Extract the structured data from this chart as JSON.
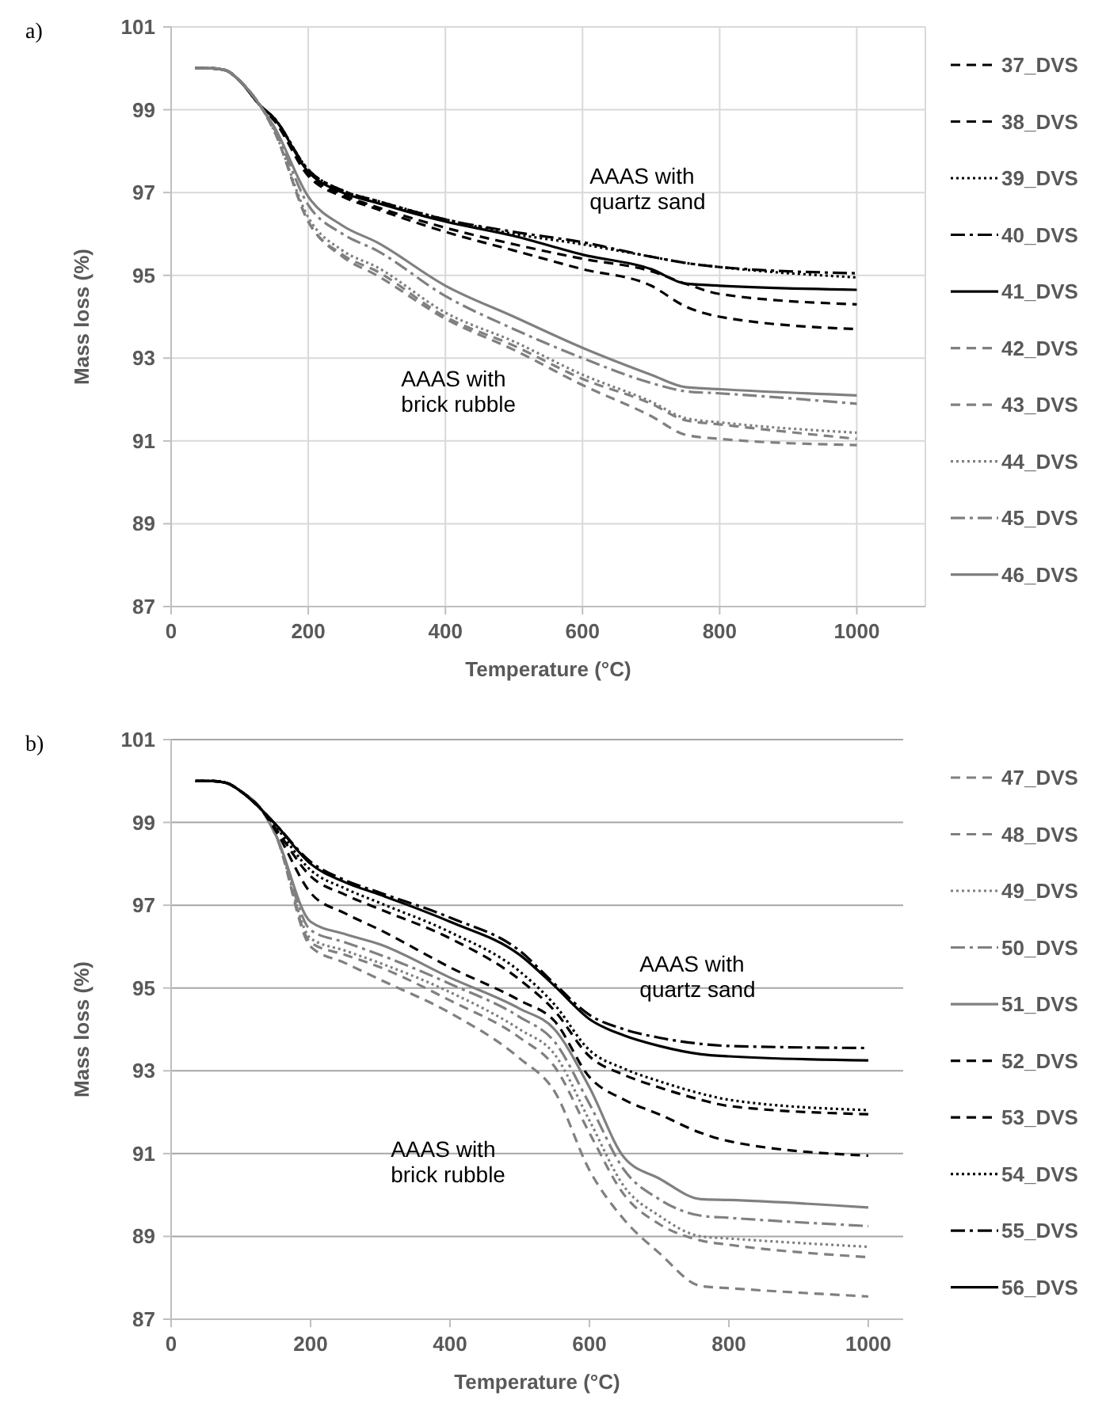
{
  "chart_data": [
    {
      "type": "line",
      "title": "a)",
      "xlabel": "Temperature (°C)",
      "ylabel": "Mass loss (%)",
      "xlim": [
        0,
        1100
      ],
      "xticks": [
        0,
        200,
        400,
        600,
        800,
        1000
      ],
      "ylim": [
        87,
        101
      ],
      "yticks": [
        87,
        89,
        91,
        93,
        95,
        97,
        99,
        101
      ],
      "grid": true,
      "legend": "right",
      "x": [
        35,
        60,
        80,
        100,
        130,
        150,
        200,
        250,
        300,
        400,
        500,
        600,
        700,
        750,
        800,
        1000
      ],
      "annotations": [
        "AAAS with\nquartz sand",
        "AAAS with\nbrick rubble"
      ],
      "series": [
        {
          "name": "37_DVS",
          "color": "#000000",
          "line_style": "dashed",
          "values": [
            100,
            100,
            99.95,
            99.7,
            99.1,
            98.75,
            97.4,
            96.9,
            96.6,
            96.05,
            95.6,
            95.15,
            94.75,
            94.25,
            94.0,
            93.7
          ]
        },
        {
          "name": "38_DVS",
          "color": "#000000",
          "line_style": "dashed",
          "values": [
            100,
            100,
            99.95,
            99.7,
            99.1,
            98.75,
            97.45,
            96.95,
            96.65,
            96.15,
            95.75,
            95.4,
            95.1,
            94.8,
            94.55,
            94.3
          ]
        },
        {
          "name": "39_DVS",
          "color": "#000000",
          "line_style": "dotted",
          "values": [
            100,
            100,
            99.95,
            99.7,
            99.1,
            98.8,
            97.55,
            97.05,
            96.8,
            96.35,
            96.0,
            95.75,
            95.45,
            95.3,
            95.2,
            94.95
          ]
        },
        {
          "name": "40_DVS",
          "color": "#000000",
          "line_style": "dashdot",
          "values": [
            100,
            100,
            99.95,
            99.7,
            99.1,
            98.8,
            97.55,
            97.05,
            96.8,
            96.35,
            96.05,
            95.8,
            95.45,
            95.3,
            95.2,
            95.05
          ]
        },
        {
          "name": "41_DVS",
          "color": "#000000",
          "line_style": "solid",
          "values": [
            100,
            100,
            99.95,
            99.7,
            99.1,
            98.8,
            97.5,
            97.0,
            96.75,
            96.3,
            95.95,
            95.5,
            95.15,
            94.8,
            94.75,
            94.65
          ]
        },
        {
          "name": "42_DVS",
          "color": "#808080",
          "line_style": "dashed",
          "values": [
            100,
            100,
            99.95,
            99.7,
            99.1,
            98.5,
            96.3,
            95.45,
            95.0,
            93.95,
            93.2,
            92.35,
            91.6,
            91.15,
            91.05,
            90.9
          ]
        },
        {
          "name": "43_DVS",
          "color": "#808080",
          "line_style": "dashed",
          "values": [
            100,
            100,
            99.95,
            99.7,
            99.1,
            98.5,
            96.3,
            95.5,
            95.1,
            94.0,
            93.3,
            92.5,
            91.9,
            91.5,
            91.4,
            91.05
          ]
        },
        {
          "name": "44_DVS",
          "color": "#808080",
          "line_style": "dotted",
          "values": [
            100,
            100,
            99.95,
            99.7,
            99.1,
            98.5,
            96.4,
            95.6,
            95.2,
            94.1,
            93.4,
            92.6,
            91.95,
            91.55,
            91.45,
            91.2
          ]
        },
        {
          "name": "45_DVS",
          "color": "#808080",
          "line_style": "dashdot",
          "values": [
            100,
            100,
            99.95,
            99.7,
            99.1,
            98.55,
            96.7,
            96.0,
            95.6,
            94.5,
            93.7,
            93.0,
            92.4,
            92.2,
            92.15,
            91.9
          ]
        },
        {
          "name": "46_DVS",
          "color": "#808080",
          "line_style": "solid",
          "values": [
            100,
            100,
            99.95,
            99.7,
            99.1,
            98.6,
            96.9,
            96.2,
            95.8,
            94.75,
            94.0,
            93.25,
            92.6,
            92.3,
            92.25,
            92.1
          ]
        }
      ]
    },
    {
      "type": "line",
      "title": "b)",
      "xlabel": "Temperature (°C)",
      "ylabel": "Mass loss (%)",
      "xlim": [
        0,
        1050
      ],
      "xticks": [
        0,
        200,
        400,
        600,
        800,
        1000
      ],
      "ylim": [
        87,
        101
      ],
      "yticks": [
        87,
        89,
        91,
        93,
        95,
        97,
        99,
        101
      ],
      "grid": "y",
      "legend": "right",
      "x": [
        35,
        60,
        80,
        100,
        130,
        150,
        200,
        250,
        300,
        400,
        500,
        550,
        600,
        650,
        700,
        760,
        800,
        1000
      ],
      "annotations": [
        "AAAS with\nquartz sand",
        "AAAS with\nbrick rubble"
      ],
      "series": [
        {
          "name": "47_DVS",
          "color": "#808080",
          "line_style": "dashed",
          "values": [
            100,
            100,
            99.95,
            99.75,
            99.3,
            98.7,
            96.0,
            95.6,
            95.2,
            94.4,
            93.3,
            92.5,
            90.6,
            89.4,
            88.6,
            87.8,
            87.75,
            87.55
          ]
        },
        {
          "name": "48_DVS",
          "color": "#808080",
          "line_style": "dashed",
          "values": [
            100,
            100,
            99.95,
            99.75,
            99.3,
            98.7,
            96.1,
            95.8,
            95.5,
            94.7,
            93.8,
            93.1,
            91.5,
            90.0,
            89.3,
            88.9,
            88.8,
            88.5
          ]
        },
        {
          "name": "49_DVS",
          "color": "#808080",
          "line_style": "dotted",
          "values": [
            100,
            100,
            99.95,
            99.75,
            99.3,
            98.7,
            96.2,
            95.9,
            95.6,
            94.9,
            94.0,
            93.4,
            91.8,
            90.2,
            89.5,
            89.0,
            88.95,
            88.75
          ]
        },
        {
          "name": "50_DVS",
          "color": "#808080",
          "line_style": "dashdot",
          "values": [
            100,
            100,
            99.95,
            99.75,
            99.3,
            98.7,
            96.4,
            96.1,
            95.8,
            95.1,
            94.3,
            93.7,
            92.2,
            90.6,
            89.9,
            89.5,
            89.45,
            89.25
          ]
        },
        {
          "name": "51_DVS",
          "color": "#808080",
          "line_style": "solid",
          "values": [
            100,
            100,
            99.95,
            99.75,
            99.3,
            98.7,
            96.6,
            96.3,
            96.05,
            95.25,
            94.5,
            94.0,
            92.6,
            90.9,
            90.4,
            89.9,
            89.88,
            89.7
          ]
        },
        {
          "name": "52_DVS",
          "color": "#000000",
          "line_style": "dashed",
          "values": [
            100,
            100,
            99.95,
            99.75,
            99.3,
            98.8,
            97.3,
            96.8,
            96.4,
            95.5,
            94.7,
            94.2,
            92.85,
            92.3,
            91.95,
            91.5,
            91.3,
            90.95
          ]
        },
        {
          "name": "53_DVS",
          "color": "#000000",
          "line_style": "dashed",
          "values": [
            100,
            100,
            99.95,
            99.75,
            99.3,
            98.85,
            97.7,
            97.25,
            96.9,
            96.2,
            95.2,
            94.45,
            93.35,
            92.9,
            92.6,
            92.3,
            92.15,
            91.95
          ]
        },
        {
          "name": "54_DVS",
          "color": "#000000",
          "line_style": "dotted",
          "values": [
            100,
            100,
            99.95,
            99.75,
            99.3,
            98.9,
            97.85,
            97.4,
            97.05,
            96.35,
            95.4,
            94.6,
            93.5,
            93.05,
            92.75,
            92.45,
            92.3,
            92.05
          ]
        },
        {
          "name": "55_DVS",
          "color": "#000000",
          "line_style": "dashdot",
          "values": [
            100,
            100,
            99.95,
            99.75,
            99.3,
            98.95,
            98.05,
            97.6,
            97.3,
            96.7,
            95.9,
            95.1,
            94.35,
            94.0,
            93.8,
            93.65,
            93.6,
            93.55
          ]
        },
        {
          "name": "56_DVS",
          "color": "#000000",
          "line_style": "solid",
          "values": [
            100,
            100,
            99.95,
            99.75,
            99.3,
            98.95,
            98.0,
            97.55,
            97.25,
            96.6,
            95.8,
            95.05,
            94.25,
            93.85,
            93.6,
            93.4,
            93.35,
            93.25
          ]
        }
      ]
    }
  ]
}
